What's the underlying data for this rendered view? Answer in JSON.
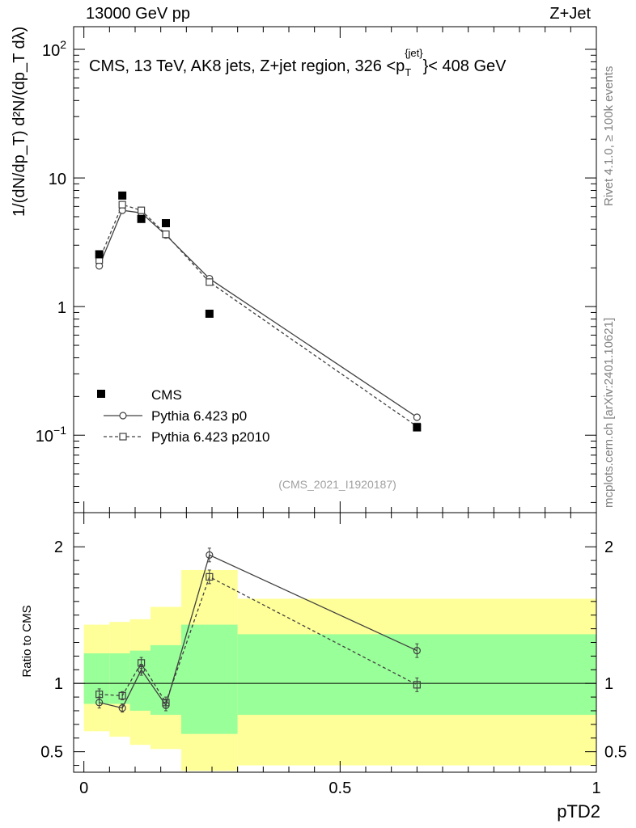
{
  "header": {
    "left": "13000 GeV pp",
    "right": "Z+Jet"
  },
  "side_notes": {
    "top": "Rivet 4.1.0, ≥ 100k events",
    "bottom": "mcplots.cern.ch [arXiv:2401.10621]"
  },
  "colors": {
    "data": "#000000",
    "p0": "#404040",
    "p2010": "#404040",
    "band_inner": "#99ff99",
    "band_outer": "#ffff99"
  },
  "chart_data": [
    {
      "type": "scatter",
      "panel": "main",
      "title": "CMS, 13 TeV, AK8 jets, Z+jet region, 326 <p_T^{jet}> < 408 GeV",
      "title_parts": {
        "pre": "CMS, 13 TeV, AK8 jets, Z+jet region, 326 <p",
        "sub": "T",
        "sup": "{jet}",
        "post": "}< 408 GeV"
      },
      "ylabel": "1/(dN/dp_T) d²N/(dp_T dλ)",
      "yscale": "log",
      "ylim": [
        0.025,
        150
      ],
      "xlim": [
        -0.02,
        1.0
      ],
      "yticks": [
        {
          "v": 0.1,
          "base": "10",
          "exp": "−1"
        },
        {
          "v": 1,
          "base": "1",
          "exp": ""
        },
        {
          "v": 10,
          "base": "10",
          "exp": ""
        },
        {
          "v": 100,
          "base": "10",
          "exp": "2"
        }
      ],
      "watermark": "(CMS_2021_I1920187)",
      "legend": [
        "CMS",
        "Pythia 6.423 p0",
        "Pythia 6.423 p2010"
      ],
      "series": [
        {
          "name": "CMS",
          "x": [
            0.03,
            0.075,
            0.112,
            0.16,
            0.245,
            0.65
          ],
          "y": [
            2.55,
            7.3,
            4.8,
            4.45,
            0.88,
            0.115
          ]
        },
        {
          "name": "Pythia 6.423 p0",
          "x": [
            0.03,
            0.075,
            0.112,
            0.16,
            0.245,
            0.65
          ],
          "y": [
            2.07,
            5.6,
            5.35,
            3.6,
            1.65,
            0.138
          ]
        },
        {
          "name": "Pythia 6.423 p2010",
          "x": [
            0.03,
            0.075,
            0.112,
            0.16,
            0.245,
            0.65
          ],
          "y": [
            2.3,
            6.2,
            5.6,
            3.65,
            1.55,
            0.117
          ]
        }
      ]
    },
    {
      "type": "line",
      "panel": "ratio",
      "ylabel": "Ratio to CMS",
      "xlabel": "pTD2",
      "xlim": [
        -0.02,
        1.0
      ],
      "ylim": [
        0.35,
        2.25
      ],
      "xticks": [
        0,
        0.5,
        1
      ],
      "xtick_labels": [
        "0",
        "0.5",
        "1"
      ],
      "yticks": [
        0.5,
        1,
        2
      ],
      "ytick_labels": [
        "0.5",
        "1",
        "2"
      ],
      "bins": [
        0.0,
        0.05,
        0.09,
        0.13,
        0.19,
        0.3,
        1.0
      ],
      "band_inner": [
        [
          0.85,
          1.22
        ],
        [
          0.85,
          1.22
        ],
        [
          0.8,
          1.24
        ],
        [
          0.77,
          1.28
        ],
        [
          0.63,
          1.43
        ],
        [
          0.77,
          1.36
        ]
      ],
      "band_outer": [
        [
          0.65,
          1.43
        ],
        [
          0.61,
          1.45
        ],
        [
          0.55,
          1.47
        ],
        [
          0.52,
          1.56
        ],
        [
          0.36,
          1.83
        ],
        [
          0.4,
          1.62
        ]
      ],
      "series": [
        {
          "name": "Pythia 6.423 p0",
          "x": [
            0.03,
            0.075,
            0.112,
            0.16,
            0.245,
            0.65
          ],
          "y": [
            0.86,
            0.82,
            1.1,
            0.84,
            1.94,
            1.24
          ],
          "err": [
            0.04,
            0.03,
            0.04,
            0.04,
            0.05,
            0.05
          ]
        },
        {
          "name": "Pythia 6.423 p2010",
          "x": [
            0.03,
            0.075,
            0.112,
            0.16,
            0.245,
            0.65
          ],
          "y": [
            0.92,
            0.91,
            1.15,
            0.86,
            1.78,
            0.99
          ],
          "err": [
            0.04,
            0.03,
            0.04,
            0.04,
            0.05,
            0.05
          ]
        }
      ]
    }
  ]
}
